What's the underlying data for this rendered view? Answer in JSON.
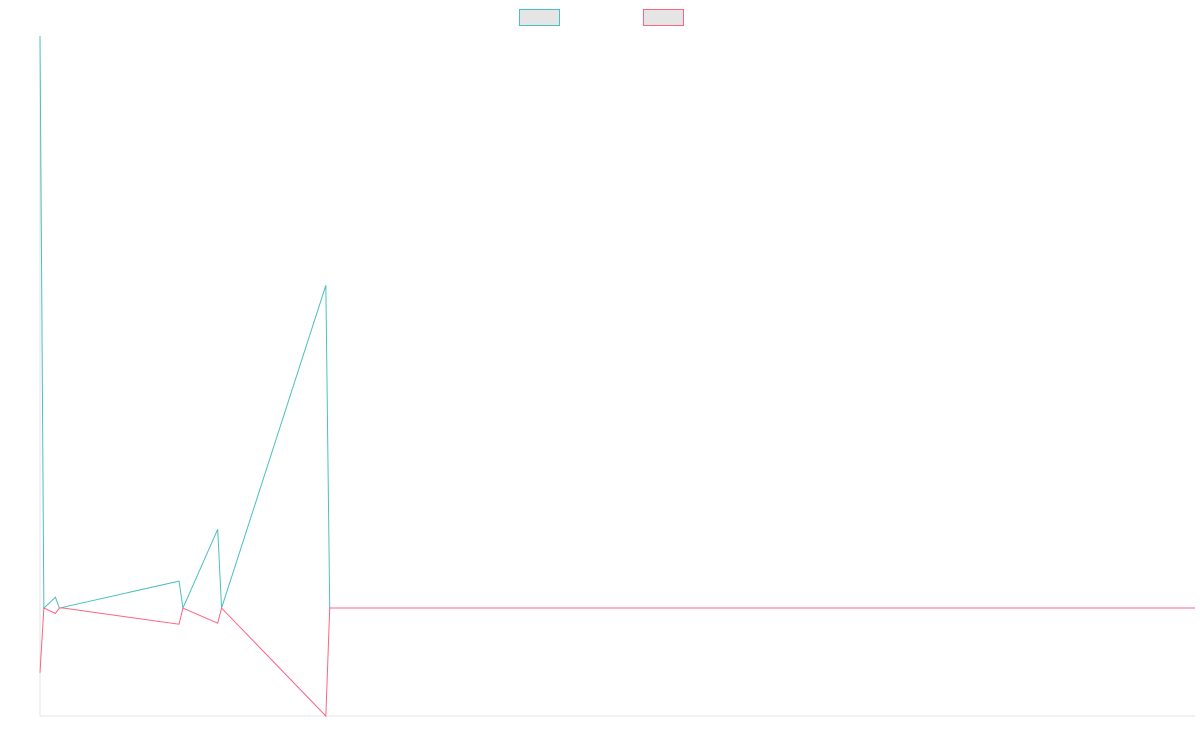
{
  "chart_data": {
    "type": "line",
    "title": "",
    "xlabel": "",
    "ylabel": "",
    "x_count": 300,
    "ylim": [
      -100,
      530
    ],
    "grid": false,
    "legend": {
      "placement": "top-center",
      "entries": [
        {
          "label": "",
          "color": "#4bc0c0"
        },
        {
          "label": "",
          "color": "#ff6384"
        }
      ]
    },
    "series": [
      {
        "color": "#4bc0c0",
        "points": [
          [
            0,
            530
          ],
          [
            1,
            0
          ],
          [
            4,
            10
          ],
          [
            5,
            0
          ],
          [
            36,
            25
          ],
          [
            37,
            0
          ],
          [
            46,
            73
          ],
          [
            47,
            0
          ],
          [
            74,
            299
          ],
          [
            75,
            0
          ],
          [
            299,
            0
          ]
        ]
      },
      {
        "color": "#ff6384",
        "points": [
          [
            0,
            -60
          ],
          [
            1,
            0
          ],
          [
            4,
            -5
          ],
          [
            5,
            0
          ],
          [
            6,
            0
          ],
          [
            36,
            -15
          ],
          [
            37,
            0
          ],
          [
            46,
            -14
          ],
          [
            47,
            0
          ],
          [
            74,
            -100
          ],
          [
            75,
            0
          ],
          [
            299,
            0
          ]
        ]
      }
    ]
  }
}
